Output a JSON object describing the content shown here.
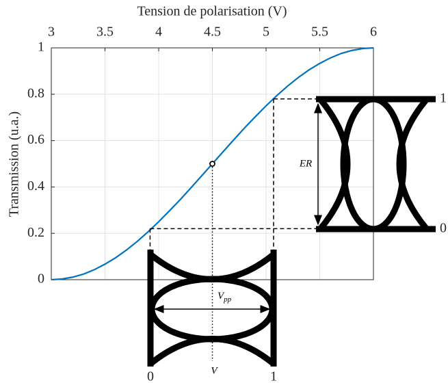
{
  "chart_data": {
    "type": "line",
    "x_label": "Tension de polarisation (V)",
    "y_label": "Transmission (u.a.)",
    "x": [
      3,
      3.1,
      3.2,
      3.3,
      3.4,
      3.5,
      3.6,
      3.7,
      3.8,
      3.9,
      4,
      4.1,
      4.2,
      4.3,
      4.4,
      4.5,
      4.6,
      4.7,
      4.8,
      4.9,
      5,
      5.1,
      5.2,
      5.3,
      5.4,
      5.5,
      5.6,
      5.7,
      5.8,
      5.9,
      6
    ],
    "series": [
      {
        "color": "#0072bd",
        "values": [
          0,
          0.003,
          0.011,
          0.024,
          0.043,
          0.067,
          0.095,
          0.128,
          0.165,
          0.206,
          0.25,
          0.297,
          0.345,
          0.396,
          0.448,
          0.5,
          0.552,
          0.604,
          0.655,
          0.703,
          0.75,
          0.794,
          0.835,
          0.872,
          0.905,
          0.933,
          0.957,
          0.976,
          0.989,
          0.997,
          1
        ]
      }
    ],
    "xlim": [
      3,
      6
    ],
    "xticks": [
      3,
      3.5,
      4,
      4.5,
      5,
      5.5,
      6
    ],
    "ylim": [
      0,
      1
    ],
    "yticks": [
      0,
      0.2,
      0.4,
      0.6,
      0.8,
      1
    ],
    "grid": true,
    "operating_point": {
      "x": 4.5,
      "y": 0.5
    },
    "low_level": {
      "x": 3.92,
      "y": 0.22
    },
    "high_level": {
      "x": 5.07,
      "y": 0.78
    },
    "labels": {
      "out_high": "1",
      "out_low": "0",
      "er": "ER",
      "vpp": "V",
      "vpp_sub": "pp",
      "in_low": "0",
      "in_high": "1",
      "bias": "V"
    }
  }
}
